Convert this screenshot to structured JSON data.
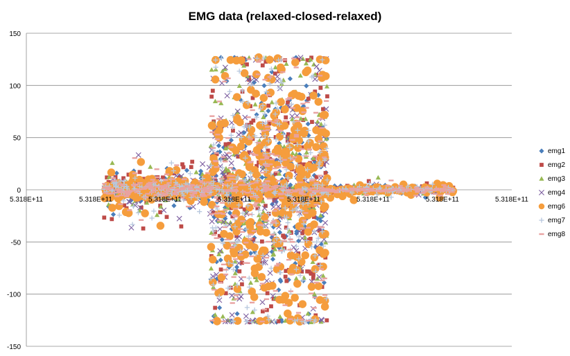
{
  "chart_data": {
    "type": "scatter",
    "title": "EMG data (relaxed-closed-relaxed)",
    "xlabel": "",
    "ylabel": "",
    "ylim": [
      -150,
      150
    ],
    "yticks": [
      150,
      100,
      50,
      0,
      -50,
      -100,
      -150
    ],
    "xtick_labels": [
      "5.318E+11",
      "5.318E+11",
      "5.318E+11",
      "5.318E+11",
      "5.318E+11",
      "5.318E+11",
      "5.318E+11",
      "5.318E+11"
    ],
    "grid": "horizontal",
    "legend_position": "right",
    "phases": [
      {
        "name": "relaxed",
        "x_start": 0.16,
        "x_end": 0.38,
        "spread": 42
      },
      {
        "name": "closed",
        "x_start": 0.38,
        "x_end": 0.62,
        "spread": 128
      },
      {
        "name": "relaxed",
        "x_start": 0.62,
        "x_end": 0.88,
        "spread": 10
      }
    ],
    "series": [
      {
        "name": "emg1",
        "marker": "diamond",
        "color": "#4a7ebb"
      },
      {
        "name": "emg2",
        "marker": "square",
        "color": "#be4b48"
      },
      {
        "name": "emg3",
        "marker": "triangle",
        "color": "#98b954"
      },
      {
        "name": "emg4",
        "marker": "x",
        "color": "#7d5fa0"
      },
      {
        "name": "emg6",
        "marker": "circle",
        "color": "#f59d3d"
      },
      {
        "name": "emg7",
        "marker": "plus",
        "color": "#b7c7dd"
      },
      {
        "name": "emg8",
        "marker": "dash",
        "color": "#e8a2a1"
      }
    ]
  }
}
